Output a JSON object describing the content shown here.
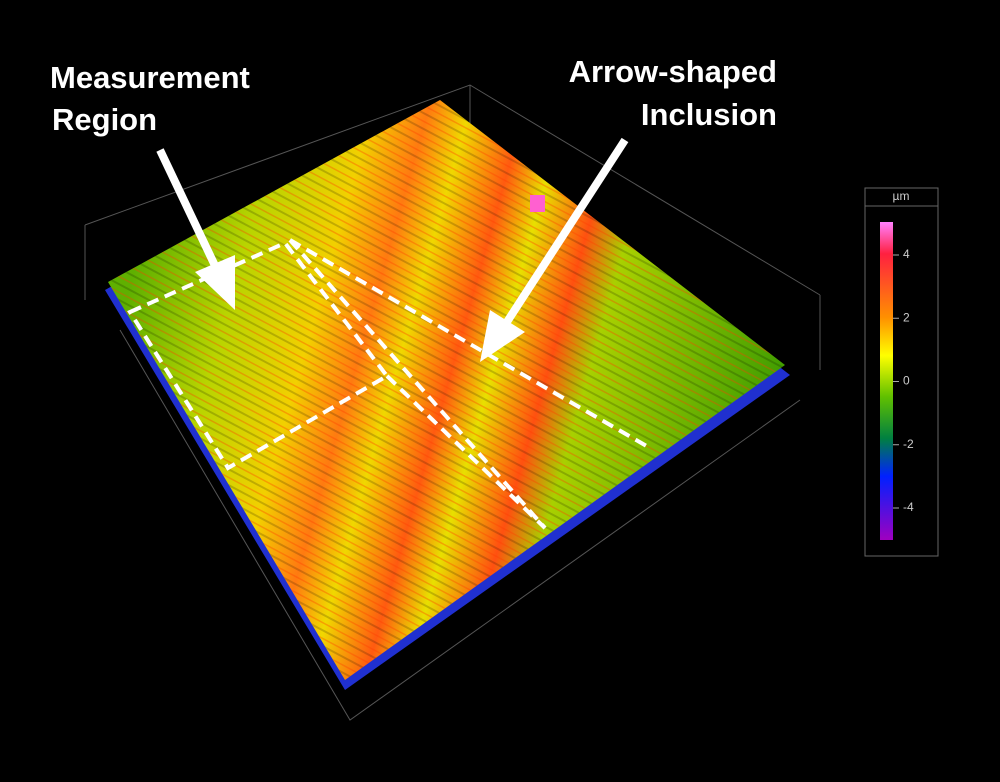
{
  "annotations": [
    {
      "lines": [
        "Measurement",
        "Region"
      ]
    },
    {
      "lines": [
        "Arrow-shaped",
        "Inclusion"
      ]
    }
  ],
  "colorbar": {
    "unit": "µm",
    "ticks": [
      4,
      2,
      0,
      -2,
      -4
    ]
  }
}
